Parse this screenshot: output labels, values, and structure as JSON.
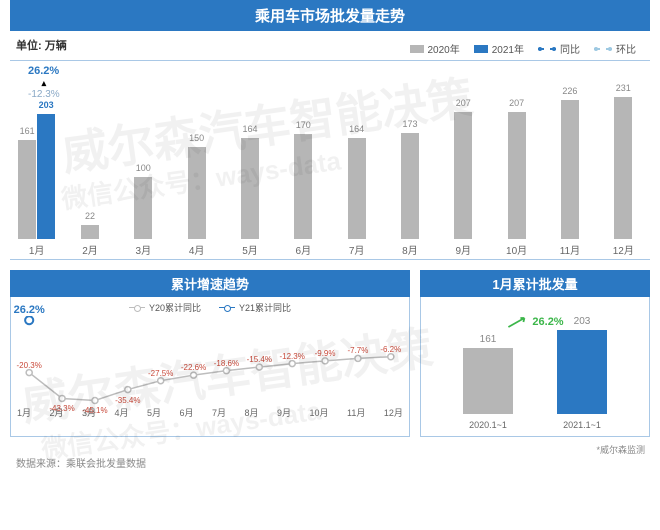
{
  "main": {
    "title": "乘用车市场批发量走势",
    "unit_label": "单位: 万辆",
    "legend": {
      "y2020": "2020年",
      "y2021": "2021年",
      "yoy": "同比",
      "mom": "环比"
    },
    "colors": {
      "y2020": "#b6b6b6",
      "y2021": "#2b78c2",
      "yoy": "#2b78c2",
      "mom": "#9ec9e2",
      "border": "#a9c8e6"
    },
    "annot": {
      "yoy_value": "26.2%",
      "mom_value": "-12.3%",
      "yoy_color": "#2b78c2",
      "mom_color": "#8aa9c7"
    },
    "months": [
      "1月",
      "2月",
      "3月",
      "4月",
      "5月",
      "6月",
      "7月",
      "8月",
      "9月",
      "10月",
      "11月",
      "12月"
    ],
    "v2020": [
      161,
      22,
      100,
      150,
      164,
      170,
      164,
      173,
      207,
      207,
      226,
      231
    ],
    "v2021": [
      203,
      null,
      null,
      null,
      null,
      null,
      null,
      null,
      null,
      null,
      null,
      null
    ],
    "ymax": 260
  },
  "trend": {
    "title": "累计增速趋势",
    "legend": {
      "y20": "Y20累计同比",
      "y21": "Y21累计同比"
    },
    "colors": {
      "y20": "#bdbdbd",
      "y21": "#2b78c2",
      "labels": "#c94a3b"
    },
    "months": [
      "1月",
      "2月",
      "3月",
      "4月",
      "5月",
      "6月",
      "7月",
      "8月",
      "9月",
      "10月",
      "11月",
      "12月"
    ],
    "y20_values": [
      -20.3,
      -43.3,
      -45.1,
      -35.4,
      -27.5,
      -22.6,
      -18.6,
      -15.4,
      -12.3,
      -9.9,
      -7.7,
      -6.2
    ],
    "y21_point": {
      "month_index": 0,
      "value": 26.2,
      "label": "26.2%"
    },
    "ymin": -50,
    "ymax": 30
  },
  "cum": {
    "title": "1月累计批发量",
    "bars": [
      {
        "x": "2020.1~1",
        "value": 161,
        "color": "#b6b6b6"
      },
      {
        "x": "2021.1~1",
        "value": 203,
        "color": "#2b78c2"
      }
    ],
    "growth_label": "26.2%",
    "growth_color": "#3cb64a",
    "ymax": 230,
    "footnote": "*威尔森监测"
  },
  "source": "数据来源：乘联会批发量数据",
  "watermark": {
    "line1": "威尔森汽车智能决策",
    "line2": "微信公众号：ways-data"
  }
}
